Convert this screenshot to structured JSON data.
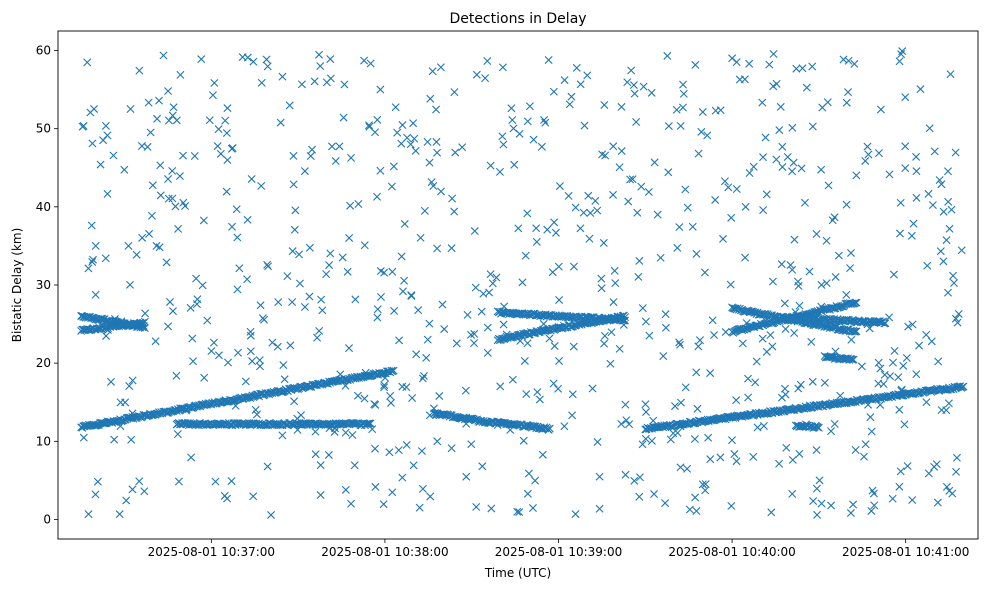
{
  "chart_data": {
    "type": "scatter",
    "title": "Detections in Delay",
    "xlabel": "Time (UTC)",
    "ylabel": "Bistatic Delay (km)",
    "x_ticks": [
      "2025-08-01 10:37:00",
      "2025-08-01 10:38:00",
      "2025-08-01 10:39:00",
      "2025-08-01 10:40:00",
      "2025-08-01 10:41:00"
    ],
    "y_ticks": [
      0,
      10,
      20,
      30,
      40,
      50,
      60
    ],
    "xlim": [
      "2025-08-01 10:36:07",
      "2025-08-01 10:41:25"
    ],
    "ylim": [
      -2.5,
      62.5
    ],
    "marker": "x",
    "grid": false,
    "color": "#1f77b4",
    "tracks": [
      {
        "x_start": "2025-08-01 10:36:15",
        "x_end": "2025-08-01 10:38:03",
        "y_start": 11.8,
        "y_end": 19.0
      },
      {
        "x_start": "2025-08-01 10:36:15",
        "x_end": "2025-08-01 10:36:37",
        "y_start": 24.2,
        "y_end": 25.2
      },
      {
        "x_start": "2025-08-01 10:36:15",
        "x_end": "2025-08-01 10:36:37",
        "y_start": 26.0,
        "y_end": 24.6
      },
      {
        "x_start": "2025-08-01 10:36:48",
        "x_end": "2025-08-01 10:37:55",
        "y_start": 12.2,
        "y_end": 12.2
      },
      {
        "x_start": "2025-08-01 10:38:17",
        "x_end": "2025-08-01 10:38:33",
        "y_start": 13.6,
        "y_end": 12.6
      },
      {
        "x_start": "2025-08-01 10:38:33",
        "x_end": "2025-08-01 10:38:57",
        "y_start": 12.6,
        "y_end": 11.6
      },
      {
        "x_start": "2025-08-01 10:38:39",
        "x_end": "2025-08-01 10:39:23",
        "y_start": 26.5,
        "y_end": 25.5
      },
      {
        "x_start": "2025-08-01 10:38:39",
        "x_end": "2025-08-01 10:39:00",
        "y_start": 23.0,
        "y_end": 24.5
      },
      {
        "x_start": "2025-08-01 10:39:00",
        "x_end": "2025-08-01 10:39:23",
        "y_start": 24.5,
        "y_end": 26.0
      },
      {
        "x_start": "2025-08-01 10:39:30",
        "x_end": "2025-08-01 10:41:20",
        "y_start": 11.6,
        "y_end": 17.0
      },
      {
        "x_start": "2025-08-01 10:40:00",
        "x_end": "2025-08-01 10:40:43",
        "y_start": 27.0,
        "y_end": 24.0
      },
      {
        "x_start": "2025-08-01 10:40:00",
        "x_end": "2025-08-01 10:40:43",
        "y_start": 24.0,
        "y_end": 27.8
      },
      {
        "x_start": "2025-08-01 10:40:18",
        "x_end": "2025-08-01 10:40:53",
        "y_start": 25.8,
        "y_end": 25.2
      },
      {
        "x_start": "2025-08-01 10:40:22",
        "x_end": "2025-08-01 10:40:30",
        "y_start": 12.0,
        "y_end": 11.8
      },
      {
        "x_start": "2025-08-01 10:40:32",
        "x_end": "2025-08-01 10:40:42",
        "y_start": 20.8,
        "y_end": 20.4
      }
    ],
    "scatter_clutter": {
      "x_range": [
        "2025-08-01 10:36:15",
        "2025-08-01 10:41:20"
      ],
      "y_range": [
        0.5,
        60
      ],
      "count": 780
    }
  }
}
